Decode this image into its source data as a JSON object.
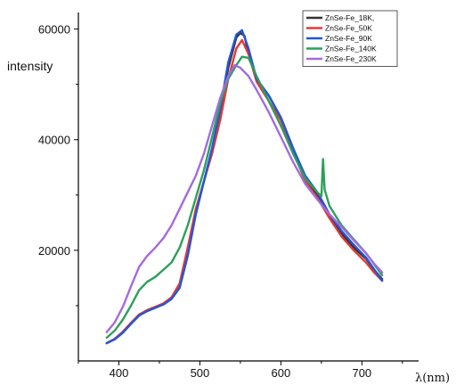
{
  "chart_data": {
    "type": "line",
    "xlabel": "λ(nm)",
    "ylabel": "intensity",
    "xlim": [
      350,
      770
    ],
    "ylim": [
      0,
      63000
    ],
    "x_ticks": [
      400,
      500,
      600,
      700
    ],
    "y_ticks": [
      20000,
      40000,
      60000
    ],
    "grid": false,
    "legend_position": "top-right",
    "series": [
      {
        "name": "ZnSe-Fe_18K,",
        "color": "#333333",
        "points": [
          [
            385,
            3200
          ],
          [
            395,
            4000
          ],
          [
            405,
            5200
          ],
          [
            415,
            6800
          ],
          [
            425,
            8300
          ],
          [
            435,
            9100
          ],
          [
            445,
            9700
          ],
          [
            455,
            10300
          ],
          [
            465,
            11300
          ],
          [
            475,
            13500
          ],
          [
            485,
            19500
          ],
          [
            495,
            27000
          ],
          [
            505,
            32500
          ],
          [
            515,
            38000
          ],
          [
            525,
            44500
          ],
          [
            535,
            53000
          ],
          [
            545,
            58500
          ],
          [
            550,
            59300
          ],
          [
            555,
            58800
          ],
          [
            560,
            55500
          ],
          [
            570,
            51000
          ],
          [
            585,
            48000
          ],
          [
            600,
            44000
          ],
          [
            615,
            38500
          ],
          [
            630,
            33000
          ],
          [
            645,
            30000
          ],
          [
            660,
            26000
          ],
          [
            675,
            23000
          ],
          [
            690,
            20500
          ],
          [
            705,
            18500
          ],
          [
            715,
            16500
          ],
          [
            725,
            14800
          ]
        ]
      },
      {
        "name": "ZnSe-Fe_50K",
        "color": "#e53935",
        "points": [
          [
            385,
            3200
          ],
          [
            395,
            4000
          ],
          [
            405,
            5300
          ],
          [
            415,
            6900
          ],
          [
            425,
            8400
          ],
          [
            435,
            9200
          ],
          [
            445,
            9800
          ],
          [
            455,
            10400
          ],
          [
            465,
            11500
          ],
          [
            475,
            14000
          ],
          [
            485,
            20500
          ],
          [
            495,
            27500
          ],
          [
            505,
            32500
          ],
          [
            515,
            37500
          ],
          [
            525,
            43500
          ],
          [
            535,
            51000
          ],
          [
            545,
            56500
          ],
          [
            552,
            58000
          ],
          [
            560,
            55500
          ],
          [
            570,
            50500
          ],
          [
            585,
            47000
          ],
          [
            600,
            43500
          ],
          [
            615,
            38000
          ],
          [
            630,
            32500
          ],
          [
            645,
            29500
          ],
          [
            660,
            25800
          ],
          [
            675,
            22500
          ],
          [
            690,
            20000
          ],
          [
            705,
            17800
          ],
          [
            715,
            16000
          ],
          [
            725,
            14500
          ]
        ]
      },
      {
        "name": "ZnSe-Fe_90K",
        "color": "#2356d6",
        "points": [
          [
            385,
            3200
          ],
          [
            395,
            3900
          ],
          [
            405,
            5100
          ],
          [
            415,
            6700
          ],
          [
            425,
            8200
          ],
          [
            435,
            9000
          ],
          [
            445,
            9600
          ],
          [
            455,
            10200
          ],
          [
            465,
            11200
          ],
          [
            475,
            13200
          ],
          [
            485,
            19000
          ],
          [
            495,
            26500
          ],
          [
            505,
            32500
          ],
          [
            515,
            38500
          ],
          [
            525,
            45500
          ],
          [
            535,
            54000
          ],
          [
            545,
            59000
          ],
          [
            552,
            59800
          ],
          [
            560,
            56500
          ],
          [
            570,
            51000
          ],
          [
            585,
            48000
          ],
          [
            600,
            44000
          ],
          [
            615,
            38500
          ],
          [
            630,
            33500
          ],
          [
            645,
            30500
          ],
          [
            660,
            26500
          ],
          [
            675,
            23500
          ],
          [
            690,
            21000
          ],
          [
            705,
            18700
          ],
          [
            715,
            16600
          ],
          [
            725,
            14500
          ]
        ]
      },
      {
        "name": "ZnSe-Fe_140K",
        "color": "#2ca05a",
        "points": [
          [
            385,
            4200
          ],
          [
            395,
            5500
          ],
          [
            405,
            7500
          ],
          [
            415,
            10000
          ],
          [
            425,
            12800
          ],
          [
            435,
            14300
          ],
          [
            445,
            15200
          ],
          [
            455,
            16500
          ],
          [
            465,
            17800
          ],
          [
            475,
            20500
          ],
          [
            485,
            24500
          ],
          [
            495,
            29500
          ],
          [
            505,
            34500
          ],
          [
            515,
            40500
          ],
          [
            525,
            46500
          ],
          [
            535,
            51000
          ],
          [
            545,
            53500
          ],
          [
            552,
            55000
          ],
          [
            560,
            54800
          ],
          [
            570,
            51500
          ],
          [
            585,
            47000
          ],
          [
            600,
            42500
          ],
          [
            615,
            37500
          ],
          [
            630,
            33000
          ],
          [
            645,
            30500
          ],
          [
            650,
            29800
          ],
          [
            652,
            36500
          ],
          [
            654,
            31000
          ],
          [
            660,
            28000
          ],
          [
            675,
            24500
          ],
          [
            690,
            22000
          ],
          [
            705,
            19500
          ],
          [
            715,
            17500
          ],
          [
            725,
            15500
          ]
        ]
      },
      {
        "name": "ZnSe-Fe_230K",
        "color": "#a36be0",
        "points": [
          [
            385,
            5200
          ],
          [
            395,
            7000
          ],
          [
            405,
            9800
          ],
          [
            415,
            13500
          ],
          [
            425,
            17000
          ],
          [
            435,
            19000
          ],
          [
            445,
            20500
          ],
          [
            455,
            22200
          ],
          [
            465,
            24500
          ],
          [
            475,
            27500
          ],
          [
            485,
            30500
          ],
          [
            495,
            33500
          ],
          [
            505,
            37500
          ],
          [
            515,
            42500
          ],
          [
            525,
            47500
          ],
          [
            535,
            51500
          ],
          [
            543,
            53500
          ],
          [
            550,
            53000
          ],
          [
            560,
            51500
          ],
          [
            570,
            49000
          ],
          [
            585,
            45000
          ],
          [
            600,
            40500
          ],
          [
            615,
            36000
          ],
          [
            630,
            32000
          ],
          [
            645,
            29200
          ],
          [
            660,
            26500
          ],
          [
            675,
            24200
          ],
          [
            690,
            21800
          ],
          [
            705,
            19500
          ],
          [
            715,
            17600
          ],
          [
            725,
            16000
          ]
        ]
      }
    ]
  }
}
